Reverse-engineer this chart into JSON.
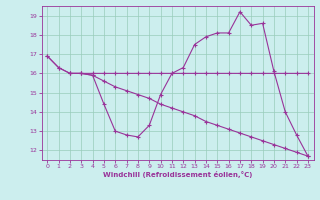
{
  "xlabel": "Windchill (Refroidissement éolien,°C)",
  "xlim": [
    -0.5,
    23.5
  ],
  "ylim": [
    11.5,
    19.5
  ],
  "yticks": [
    12,
    13,
    14,
    15,
    16,
    17,
    18,
    19
  ],
  "xticks": [
    0,
    1,
    2,
    3,
    4,
    5,
    6,
    7,
    8,
    9,
    10,
    11,
    12,
    13,
    14,
    15,
    16,
    17,
    18,
    19,
    20,
    21,
    22,
    23
  ],
  "line_color": "#993399",
  "bg_color": "#cceeee",
  "grid_color": "#99ccbb",
  "line1_x": [
    0,
    1,
    2,
    3,
    4,
    5,
    6,
    7,
    8,
    9,
    10,
    11,
    12,
    13,
    14,
    15,
    16,
    17,
    18,
    19,
    20,
    21,
    22,
    23
  ],
  "line1_y": [
    16.9,
    16.3,
    16.0,
    16.0,
    16.0,
    16.0,
    16.0,
    16.0,
    16.0,
    16.0,
    16.0,
    16.0,
    16.0,
    16.0,
    16.0,
    16.0,
    16.0,
    16.0,
    16.0,
    16.0,
    16.0,
    16.0,
    16.0,
    16.0
  ],
  "line2_x": [
    0,
    1,
    2,
    3,
    4,
    5,
    6,
    7,
    8,
    9,
    10,
    11,
    12,
    13,
    14,
    15,
    16,
    17,
    18,
    19,
    20,
    21,
    22,
    23
  ],
  "line2_y": [
    16.9,
    16.3,
    16.0,
    16.0,
    15.9,
    14.4,
    13.0,
    12.8,
    12.7,
    13.3,
    14.9,
    16.0,
    16.3,
    17.5,
    17.9,
    18.1,
    18.1,
    19.2,
    18.5,
    18.6,
    16.1,
    14.0,
    12.8,
    11.7
  ],
  "line3_x": [
    2,
    3,
    4,
    5,
    6,
    7,
    8,
    9,
    10,
    11,
    12,
    13,
    14,
    15,
    16,
    17,
    18,
    19,
    20,
    21,
    22,
    23
  ],
  "line3_y": [
    16.0,
    16.0,
    15.9,
    15.6,
    15.3,
    15.1,
    14.9,
    14.7,
    14.4,
    14.2,
    14.0,
    13.8,
    13.5,
    13.3,
    13.1,
    12.9,
    12.7,
    12.5,
    12.3,
    12.1,
    11.9,
    11.7
  ]
}
